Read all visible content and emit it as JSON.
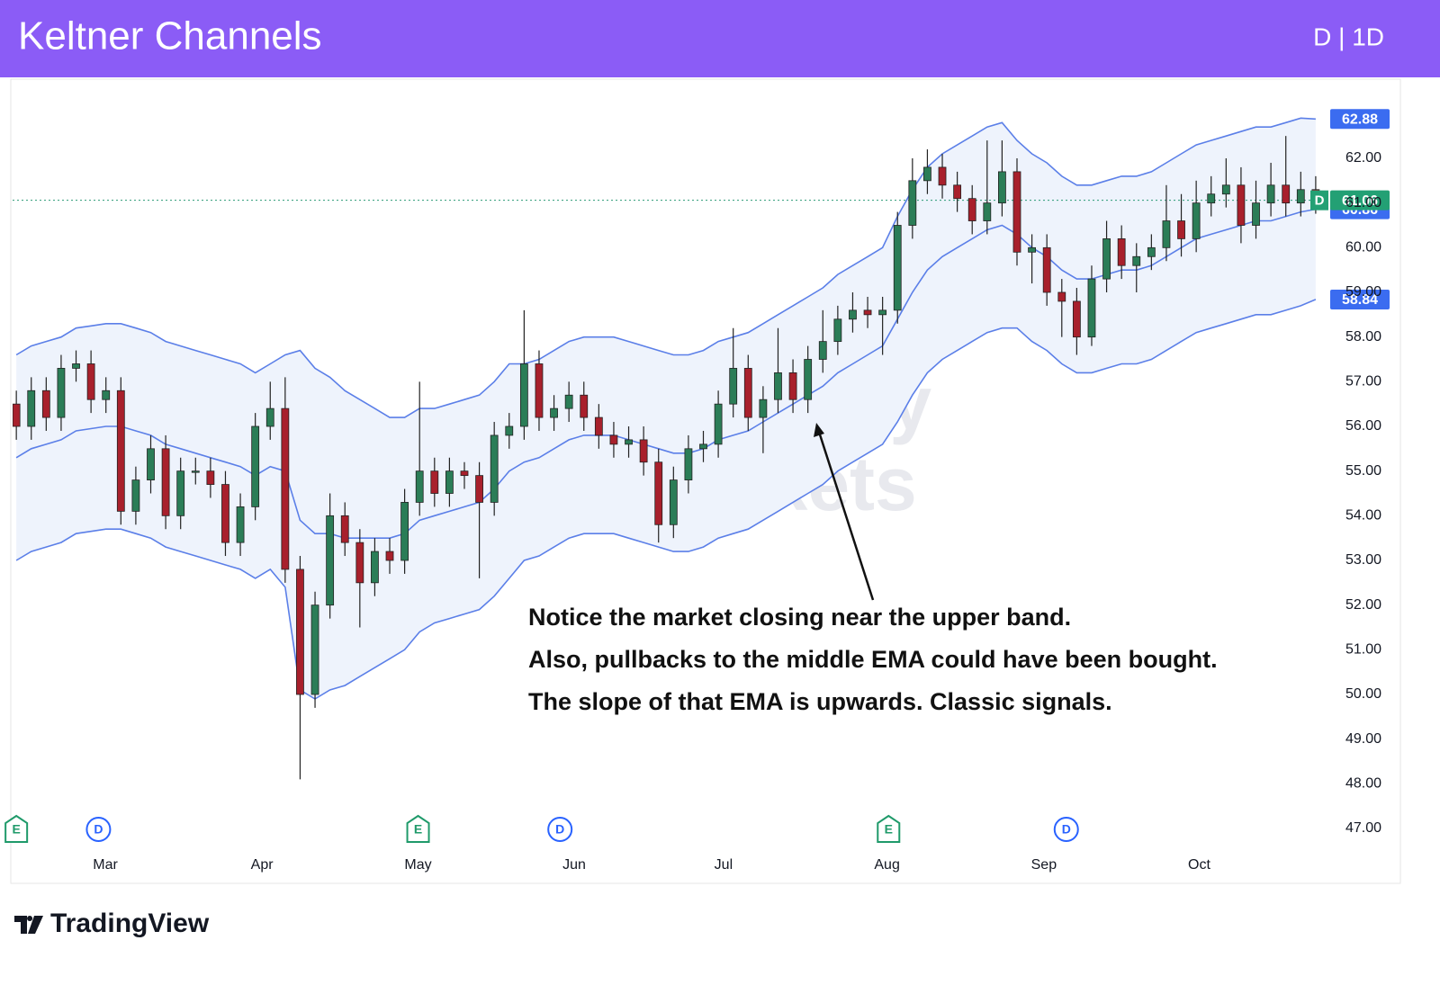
{
  "chart_data": {
    "type": "candlestick",
    "title": "Keltner Channels",
    "interval": "D | 1D",
    "up_color": "#2b7d57",
    "down_color": "#a8202c",
    "band_color": "#5b7fe8",
    "band_fill": "#eef3fc",
    "open": [
      56.5,
      56.0,
      56.8,
      56.2,
      57.3,
      57.4,
      56.6,
      56.8,
      54.1,
      54.8,
      55.5,
      54.0,
      55.0,
      55.0,
      54.7,
      53.4,
      54.2,
      56.0,
      56.4,
      52.8,
      50.0,
      52.0,
      54.0,
      53.4,
      52.5,
      53.2,
      53.0,
      54.3,
      55.0,
      54.5,
      55.0,
      54.9,
      54.3,
      55.8,
      56.0,
      57.4,
      56.2,
      56.4,
      56.7,
      56.2,
      55.8,
      55.6,
      55.7,
      55.2,
      53.8,
      54.8,
      55.5,
      55.6,
      56.5,
      57.3,
      56.2,
      56.6,
      57.2,
      56.6,
      57.5,
      57.9,
      58.4,
      58.6,
      58.5,
      58.6,
      60.5,
      61.5,
      61.8,
      61.4,
      61.1,
      60.6,
      61.0,
      61.7,
      59.9,
      60.0,
      59.0,
      58.8,
      58.0,
      59.3,
      60.2,
      59.6,
      59.8,
      60.0,
      60.6,
      60.2,
      61.0,
      61.2,
      61.4,
      60.5,
      61.0,
      61.4,
      61.0,
      61.3
    ],
    "high": [
      56.8,
      57.1,
      57.1,
      57.6,
      57.7,
      57.7,
      57.1,
      57.1,
      55.1,
      55.8,
      55.8,
      55.3,
      55.3,
      55.3,
      55.0,
      54.5,
      56.3,
      57.0,
      57.1,
      53.1,
      52.3,
      54.5,
      54.3,
      53.7,
      53.5,
      53.5,
      54.6,
      57.0,
      55.3,
      55.3,
      55.2,
      55.2,
      56.1,
      56.3,
      58.6,
      57.7,
      56.7,
      57.0,
      57.0,
      56.5,
      56.1,
      56.0,
      56.0,
      55.5,
      55.1,
      55.8,
      55.9,
      56.8,
      58.2,
      57.6,
      56.9,
      58.2,
      57.5,
      57.8,
      58.6,
      58.7,
      59.0,
      58.9,
      58.9,
      60.8,
      62.0,
      62.2,
      62.1,
      61.7,
      61.4,
      62.4,
      62.4,
      62.0,
      60.3,
      60.3,
      59.3,
      59.1,
      59.6,
      60.6,
      60.5,
      60.1,
      60.3,
      61.4,
      61.2,
      61.5,
      61.6,
      62.0,
      61.8,
      61.5,
      61.9,
      62.5,
      61.7,
      61.6
    ],
    "low": [
      55.7,
      55.7,
      55.9,
      55.9,
      57.0,
      56.3,
      56.3,
      53.8,
      53.8,
      54.5,
      53.7,
      53.7,
      54.7,
      54.4,
      53.1,
      53.1,
      53.9,
      55.7,
      52.5,
      48.1,
      49.7,
      51.7,
      53.1,
      51.5,
      52.2,
      52.7,
      52.7,
      54.0,
      54.2,
      54.2,
      54.6,
      52.6,
      54.0,
      55.5,
      55.7,
      55.9,
      55.9,
      56.1,
      55.9,
      55.5,
      55.3,
      55.3,
      54.9,
      53.4,
      53.5,
      54.5,
      55.2,
      55.3,
      56.2,
      55.9,
      55.4,
      56.3,
      56.3,
      56.3,
      57.2,
      57.6,
      58.1,
      58.2,
      57.6,
      58.3,
      60.2,
      61.2,
      61.1,
      60.8,
      60.3,
      60.3,
      60.7,
      59.6,
      59.2,
      58.7,
      58.0,
      57.6,
      57.8,
      59.0,
      59.3,
      59.0,
      59.5,
      59.7,
      59.8,
      59.9,
      60.7,
      60.9,
      60.1,
      60.2,
      60.7,
      60.7,
      60.7,
      60.76
    ],
    "close": [
      56.0,
      56.8,
      56.2,
      57.3,
      57.4,
      56.6,
      56.8,
      54.1,
      54.8,
      55.5,
      54.0,
      55.0,
      55.0,
      54.7,
      53.4,
      54.2,
      56.0,
      56.4,
      52.8,
      50.0,
      52.0,
      54.0,
      53.4,
      52.5,
      53.2,
      53.0,
      54.3,
      55.0,
      54.5,
      55.0,
      54.9,
      54.3,
      55.8,
      56.0,
      57.4,
      56.2,
      56.4,
      56.7,
      56.2,
      55.8,
      55.6,
      55.7,
      55.2,
      53.8,
      54.8,
      55.5,
      55.6,
      56.5,
      57.3,
      56.2,
      56.6,
      57.2,
      56.6,
      57.5,
      57.9,
      58.4,
      58.6,
      58.5,
      58.6,
      60.5,
      61.5,
      61.8,
      61.4,
      61.1,
      60.6,
      61.0,
      61.7,
      59.9,
      60.0,
      59.0,
      58.8,
      58.0,
      59.3,
      60.2,
      59.6,
      59.8,
      60.0,
      60.6,
      60.2,
      61.0,
      61.2,
      61.4,
      60.5,
      61.0,
      61.4,
      61.0,
      61.3,
      61.06
    ],
    "upper": [
      57.6,
      57.8,
      57.9,
      58.0,
      58.2,
      58.25,
      58.3,
      58.3,
      58.2,
      58.1,
      57.9,
      57.8,
      57.7,
      57.6,
      57.5,
      57.4,
      57.2,
      57.4,
      57.6,
      57.7,
      57.3,
      57.1,
      56.8,
      56.6,
      56.4,
      56.2,
      56.2,
      56.4,
      56.4,
      56.5,
      56.6,
      56.7,
      57.0,
      57.4,
      57.4,
      57.5,
      57.7,
      57.9,
      58.0,
      58.0,
      58.0,
      57.9,
      57.8,
      57.7,
      57.6,
      57.6,
      57.7,
      57.9,
      58.0,
      58.1,
      58.3,
      58.5,
      58.7,
      58.9,
      59.1,
      59.4,
      59.6,
      59.8,
      60.0,
      60.7,
      61.3,
      61.8,
      62.1,
      62.3,
      62.5,
      62.7,
      62.8,
      62.4,
      62.1,
      61.9,
      61.6,
      61.4,
      61.4,
      61.5,
      61.6,
      61.6,
      61.7,
      61.9,
      62.1,
      62.3,
      62.4,
      62.5,
      62.6,
      62.7,
      62.7,
      62.8,
      62.9,
      62.88
    ],
    "middle": [
      55.3,
      55.5,
      55.6,
      55.7,
      55.9,
      55.95,
      56.0,
      56.0,
      55.9,
      55.8,
      55.6,
      55.5,
      55.4,
      55.3,
      55.2,
      55.1,
      54.9,
      55.1,
      55.0,
      53.9,
      53.6,
      53.6,
      53.5,
      53.5,
      53.5,
      53.5,
      53.6,
      53.9,
      54.0,
      54.1,
      54.2,
      54.3,
      54.6,
      55.0,
      55.2,
      55.3,
      55.5,
      55.7,
      55.8,
      55.8,
      55.8,
      55.7,
      55.6,
      55.5,
      55.4,
      55.4,
      55.5,
      55.7,
      55.8,
      55.9,
      56.1,
      56.3,
      56.5,
      56.7,
      56.9,
      57.2,
      57.4,
      57.6,
      57.8,
      58.4,
      59.0,
      59.5,
      59.8,
      60.0,
      60.2,
      60.4,
      60.5,
      60.3,
      60.0,
      59.8,
      59.5,
      59.3,
      59.3,
      59.4,
      59.5,
      59.5,
      59.6,
      59.8,
      60.0,
      60.2,
      60.3,
      60.4,
      60.5,
      60.6,
      60.6,
      60.7,
      60.8,
      60.86
    ],
    "lower": [
      53.0,
      53.2,
      53.3,
      53.4,
      53.6,
      53.65,
      53.7,
      53.7,
      53.6,
      53.5,
      53.3,
      53.2,
      53.1,
      53.0,
      52.9,
      52.8,
      52.6,
      52.8,
      52.4,
      50.1,
      49.9,
      50.1,
      50.2,
      50.4,
      50.6,
      50.8,
      51.0,
      51.4,
      51.6,
      51.7,
      51.8,
      51.9,
      52.2,
      52.6,
      53.0,
      53.1,
      53.3,
      53.5,
      53.6,
      53.6,
      53.6,
      53.5,
      53.4,
      53.3,
      53.2,
      53.2,
      53.3,
      53.5,
      53.6,
      53.7,
      53.9,
      54.1,
      54.3,
      54.5,
      54.7,
      55.0,
      55.2,
      55.4,
      55.6,
      56.1,
      56.7,
      57.2,
      57.5,
      57.7,
      57.9,
      58.1,
      58.2,
      58.2,
      57.9,
      57.7,
      57.4,
      57.2,
      57.2,
      57.3,
      57.4,
      57.4,
      57.5,
      57.7,
      57.9,
      58.1,
      58.2,
      58.3,
      58.4,
      58.5,
      58.5,
      58.6,
      58.7,
      58.84
    ],
    "last_marker": "D",
    "xlim": [
      -0.25,
      87.85
    ],
    "xticks": [
      {
        "value": 5.96,
        "label": "Mar"
      },
      {
        "value": 16.45,
        "label": "Apr"
      },
      {
        "value": 26.9,
        "label": "May"
      },
      {
        "value": 37.35,
        "label": "Jun"
      },
      {
        "value": 47.35,
        "label": "Jul"
      },
      {
        "value": 58.3,
        "label": "Aug"
      },
      {
        "value": 68.8,
        "label": "Sep"
      },
      {
        "value": 79.2,
        "label": "Oct"
      }
    ],
    "ylim": [
      46.4,
      63.5
    ],
    "yticks": [
      {
        "value": 47,
        "label": "47.00"
      },
      {
        "value": 48,
        "label": "48.00"
      },
      {
        "value": 49,
        "label": "49.00"
      },
      {
        "value": 50,
        "label": "50.00"
      },
      {
        "value": 51,
        "label": "51.00"
      },
      {
        "value": 52,
        "label": "52.00"
      },
      {
        "value": 53,
        "label": "53.00"
      },
      {
        "value": 54,
        "label": "54.00"
      },
      {
        "value": 55,
        "label": "55.00"
      },
      {
        "value": 56,
        "label": "56.00"
      },
      {
        "value": 57,
        "label": "57.00"
      },
      {
        "value": 58,
        "label": "58.00"
      },
      {
        "value": 59,
        "label": "59.00"
      },
      {
        "value": 60,
        "label": "60.00"
      },
      {
        "value": 61,
        "label": "61.00"
      },
      {
        "value": 62,
        "label": "62.00"
      }
    ],
    "events": [
      {
        "label": "E",
        "x": 0
      },
      {
        "label": "D",
        "x": 5.5
      },
      {
        "label": "E",
        "x": 26.9
      },
      {
        "label": "D",
        "x": 36.4
      },
      {
        "label": "E",
        "x": 58.4
      },
      {
        "label": "D",
        "x": 70.3
      }
    ],
    "annotation": [
      "Notice the market closing near the upper band.",
      "Also, pullbacks to the middle EMA could have been bought.",
      "The slope of that EMA is upwards. Classic signals."
    ],
    "watermark": [
      "Alchemy",
      "Markets"
    ],
    "footer": "TradingView"
  }
}
